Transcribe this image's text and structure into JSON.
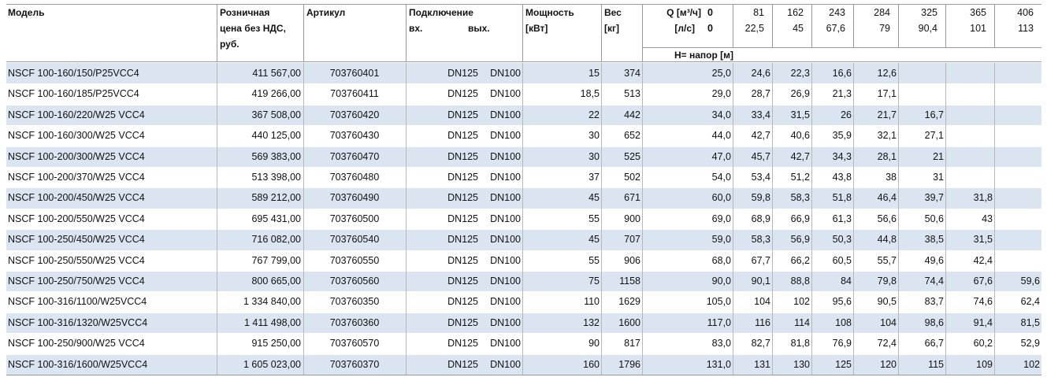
{
  "header": {
    "model": "Модель",
    "price": [
      "Розничная",
      "цена без НДС,",
      "руб."
    ],
    "article": "Артикул",
    "connection": "Подключение",
    "inlet": "вх.",
    "outlet": "вых.",
    "power": [
      "Мощность",
      "[кВт]"
    ],
    "weight": [
      "Вес",
      "[кг]"
    ],
    "q_label": "Q [м³/ч]",
    "ls_label": "[л/с]",
    "flow_m3h": [
      "0",
      "81",
      "162",
      "243",
      "284",
      "325",
      "365",
      "406"
    ],
    "flow_ls": [
      "0",
      "22,5",
      "45",
      "67,6",
      "79",
      "90,4",
      "101",
      "113"
    ],
    "head_label": "H= напор [м]"
  },
  "table": {
    "rows": [
      {
        "model": "NSCF 100-160/150/P25VCC4",
        "price": "411 567,00",
        "article": "703760401",
        "inlet": "DN125",
        "outlet": "DN100",
        "power": "15",
        "weight": "374",
        "head": [
          "25,0",
          "24,6",
          "22,3",
          "16,6",
          "12,6"
        ]
      },
      {
        "model": "NSCF 100-160/185/P25VCC4",
        "price": "419 266,00",
        "article": "703760411",
        "inlet": "DN125",
        "outlet": "DN100",
        "power": "18,5",
        "weight": "513",
        "head": [
          "29,0",
          "28,7",
          "26,9",
          "21,3",
          "17,1"
        ]
      },
      {
        "model": "NSCF 100-160/220/W25 VCC4",
        "price": "367 508,00",
        "article": "703760420",
        "inlet": "DN125",
        "outlet": "DN100",
        "power": "22",
        "weight": "442",
        "head": [
          "34,0",
          "33,4",
          "31,5",
          "26",
          "21,7",
          "16,7"
        ]
      },
      {
        "model": "NSCF 100-160/300/W25 VCC4",
        "price": "440 125,00",
        "article": "703760430",
        "inlet": "DN125",
        "outlet": "DN100",
        "power": "30",
        "weight": "652",
        "head": [
          "44,0",
          "42,7",
          "40,6",
          "35,9",
          "32,1",
          "27,1"
        ]
      },
      {
        "model": "NSCF 100-200/300/W25 VCC4",
        "price": "569 383,00",
        "article": "703760470",
        "inlet": "DN125",
        "outlet": "DN100",
        "power": "30",
        "weight": "525",
        "head": [
          "47,0",
          "45,7",
          "42,7",
          "34,3",
          "28,1",
          "21"
        ]
      },
      {
        "model": "NSCF 100-200/370/W25 VCC4",
        "price": "513 398,00",
        "article": "703760480",
        "inlet": "DN125",
        "outlet": "DN100",
        "power": "37",
        "weight": "502",
        "head": [
          "54,0",
          "53,4",
          "51,2",
          "43,8",
          "38",
          "31"
        ]
      },
      {
        "model": "NSCF 100-200/450/W25 VCC4",
        "price": "589 212,00",
        "article": "703760490",
        "inlet": "DN125",
        "outlet": "DN100",
        "power": "45",
        "weight": "671",
        "head": [
          "60,0",
          "59,8",
          "58,3",
          "51,8",
          "46,4",
          "39,7",
          "31,8"
        ]
      },
      {
        "model": "NSCF 100-200/550/W25 VCC4",
        "price": "695 431,00",
        "article": "703760500",
        "inlet": "DN125",
        "outlet": "DN100",
        "power": "55",
        "weight": "900",
        "head": [
          "69,0",
          "68,9",
          "66,9",
          "61,3",
          "56,6",
          "50,6",
          "43"
        ]
      },
      {
        "model": "NSCF 100-250/450/W25 VCC4",
        "price": "716 082,00",
        "article": "703760540",
        "inlet": "DN125",
        "outlet": "DN100",
        "power": "45",
        "weight": "707",
        "head": [
          "59,0",
          "58,3",
          "56,9",
          "50,3",
          "44,8",
          "38,5",
          "31,5"
        ]
      },
      {
        "model": "NSCF 100-250/550/W25 VCC4",
        "price": "767 799,00",
        "article": "703760550",
        "inlet": "DN125",
        "outlet": "DN100",
        "power": "55",
        "weight": "906",
        "head": [
          "68,0",
          "67,7",
          "66,2",
          "60,5",
          "55,7",
          "49,6",
          "42,4"
        ]
      },
      {
        "model": "NSCF 100-250/750/W25 VCC4",
        "price": "800 665,00",
        "article": "703760560",
        "inlet": "DN125",
        "outlet": "DN100",
        "power": "75",
        "weight": "1158",
        "head": [
          "90,0",
          "90,1",
          "88,8",
          "84",
          "79,8",
          "74,4",
          "67,6",
          "59,6"
        ]
      },
      {
        "model": "NSCF 100-316/1100/W25VCC4",
        "price": "1 334 840,00",
        "article": "703760350",
        "inlet": "DN125",
        "outlet": "DN100",
        "power": "110",
        "weight": "1629",
        "head": [
          "105,0",
          "104",
          "102",
          "95,6",
          "90,5",
          "83,7",
          "74,6",
          "62,4"
        ]
      },
      {
        "model": "NSCF 100-316/1320/W25VCC4",
        "price": "1 411 498,00",
        "article": "703760360",
        "inlet": "DN125",
        "outlet": "DN100",
        "power": "132",
        "weight": "1600",
        "head": [
          "117,0",
          "116",
          "114",
          "108",
          "104",
          "98,6",
          "91,4",
          "81,5"
        ]
      },
      {
        "model": "NSCF 100-250/900/W25 VCC4",
        "price": "915 250,00",
        "article": "703760570",
        "inlet": "DN125",
        "outlet": "DN100",
        "power": "90",
        "weight": "817",
        "head": [
          "83,0",
          "82,7",
          "81,8",
          "76,9",
          "72,4",
          "66,7",
          "60,2",
          "52,9"
        ]
      },
      {
        "model": "NSCF 100-316/1600/W25VCC4",
        "price": "1 605 023,00",
        "article": "703760370",
        "inlet": "DN125",
        "outlet": "DN100",
        "power": "160",
        "weight": "1796",
        "head": [
          "131,0",
          "131",
          "130",
          "125",
          "120",
          "115",
          "109",
          "102"
        ]
      }
    ]
  }
}
